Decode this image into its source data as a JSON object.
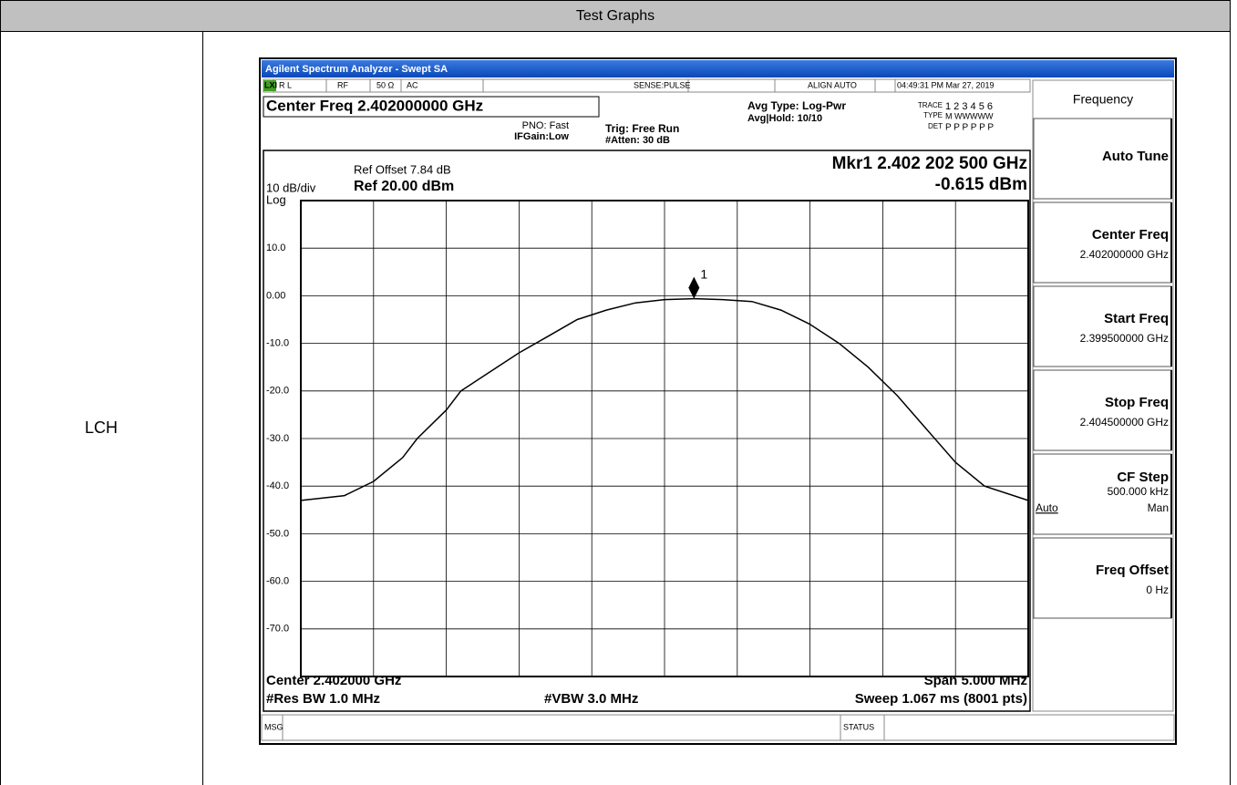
{
  "header": {
    "title": "Test Graphs"
  },
  "row": {
    "label": "LCH"
  },
  "analyzer": {
    "window_title": "Agilent Spectrum Analyzer - Swept SA",
    "status_bar": [
      "LXI",
      "R L",
      "RF",
      "50 Ω",
      "AC",
      "SENSE:PULSE",
      "ALIGN AUTO",
      "04:49:31 PM Mar 27, 2019"
    ],
    "center_freq": "Center Freq 2.402000000 GHz",
    "pno": "PNO: Fast",
    "ifgain": "IFGain:Low",
    "trig": "Trig: Free Run",
    "atten": "#Atten: 30 dB",
    "avg_type": "Avg Type: Log-Pwr",
    "avg_hold": "Avg|Hold: 10/10",
    "trace_info": {
      "trace_label": "TRACE",
      "trace": "1 2 3 4 5 6",
      "type_label": "TYPE",
      "type": "M WWWWW",
      "det_label": "DET",
      "det": "P P P P P P"
    },
    "ref_offset": "Ref Offset 7.84 dB",
    "scale": "10 dB/div",
    "ref": "Ref 20.00 dBm",
    "scale_type": "Log",
    "marker_freq": "Mkr1 2.402 202 500 GHz",
    "marker_level": "-0.615 dBm",
    "center": "Center 2.402000 GHz",
    "span": "Span 5.000 MHz",
    "rbw": "#Res BW 1.0 MHz",
    "vbw": "#VBW 3.0 MHz",
    "sweep": "Sweep  1.067 ms (8001 pts)",
    "msg": "MSG",
    "status": "STATUS",
    "menu": {
      "title": "Frequency",
      "buttons": [
        {
          "label": "Auto Tune"
        },
        {
          "label": "Center Freq",
          "value": "2.402000000 GHz"
        },
        {
          "label": "Start Freq",
          "value": "2.399500000 GHz"
        },
        {
          "label": "Stop Freq",
          "value": "2.404500000 GHz"
        },
        {
          "label": "CF Step",
          "value": "500.000 kHz",
          "options": [
            "Auto",
            "Man"
          ]
        },
        {
          "label": "Freq Offset",
          "value": "0 Hz"
        }
      ]
    }
  },
  "chart_data": {
    "type": "line",
    "xlim": [
      2.3995,
      2.4045
    ],
    "ylim": [
      -80,
      20
    ],
    "yticks": [
      {
        "value": 10,
        "label": "10.0"
      },
      {
        "value": 0,
        "label": "0.00"
      },
      {
        "value": -10,
        "label": "-10.0"
      },
      {
        "value": -20,
        "label": "-20.0"
      },
      {
        "value": -30,
        "label": "-30.0"
      },
      {
        "value": -40,
        "label": "-40.0"
      },
      {
        "value": -50,
        "label": "-50.0"
      },
      {
        "value": -60,
        "label": "-60.0"
      },
      {
        "value": -70,
        "label": "-70.0"
      }
    ],
    "grid": true,
    "series": [
      {
        "color": "#000000",
        "x": [
          2.3995,
          2.3998,
          2.4,
          2.4002,
          2.4003,
          2.4005,
          2.4006,
          2.4008,
          2.401,
          2.4012,
          2.4014,
          2.4016,
          2.4018,
          2.402,
          2.4022,
          2.4024,
          2.4026,
          2.4028,
          2.403,
          2.4032,
          2.4034,
          2.4036,
          2.4038,
          2.404,
          2.4042,
          2.4045
        ],
        "values": [
          -43,
          -42,
          -39,
          -34,
          -30,
          -24,
          -20,
          -16,
          -12,
          -8.5,
          -5,
          -3,
          -1.5,
          -0.8,
          -0.615,
          -0.8,
          -1.2,
          -3,
          -6,
          -10,
          -15,
          -21,
          -28,
          -35,
          -40,
          -43
        ]
      }
    ],
    "marker": {
      "label": "1",
      "x": 2.4022025,
      "y": -0.615
    }
  }
}
